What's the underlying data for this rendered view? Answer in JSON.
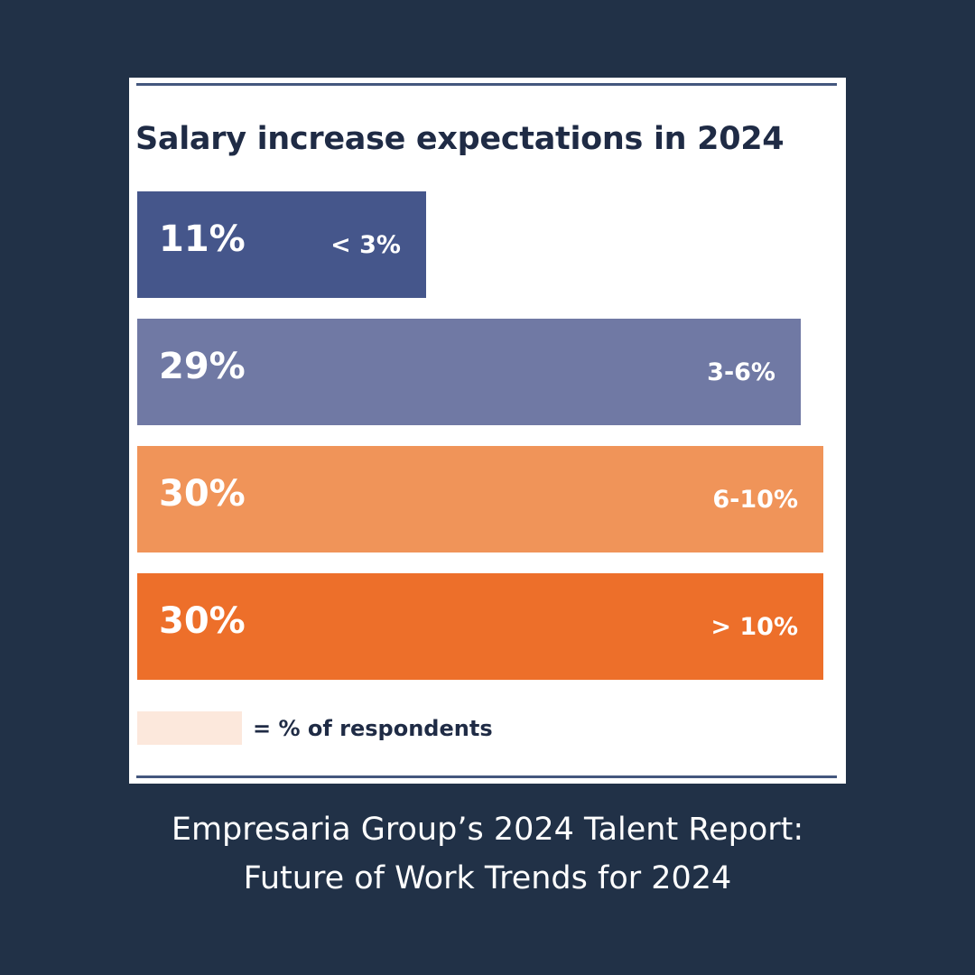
{
  "chart_data": {
    "type": "bar",
    "orientation": "horizontal",
    "title": "Salary increase expectations in 2024",
    "categories": [
      "< 3%",
      "3-6%",
      "6-10%",
      "> 10%"
    ],
    "values": [
      11,
      29,
      30,
      30
    ],
    "value_labels": [
      "11%",
      "29%",
      "30%",
      "30%"
    ],
    "colors": [
      "#45568b",
      "#7079a4",
      "#f09459",
      "#ed6f2a"
    ],
    "legend": {
      "label": "= % of respondents",
      "swatch_color": "#fce8dc"
    }
  },
  "caption": {
    "line1": "Empresaria Group’s 2024 Talent Report:",
    "line2": "Future of Work Trends for 2024"
  },
  "colors": {
    "background": "#213147",
    "card": "#ffffff",
    "rule": "#44577e",
    "title_text": "#1f2b45"
  }
}
